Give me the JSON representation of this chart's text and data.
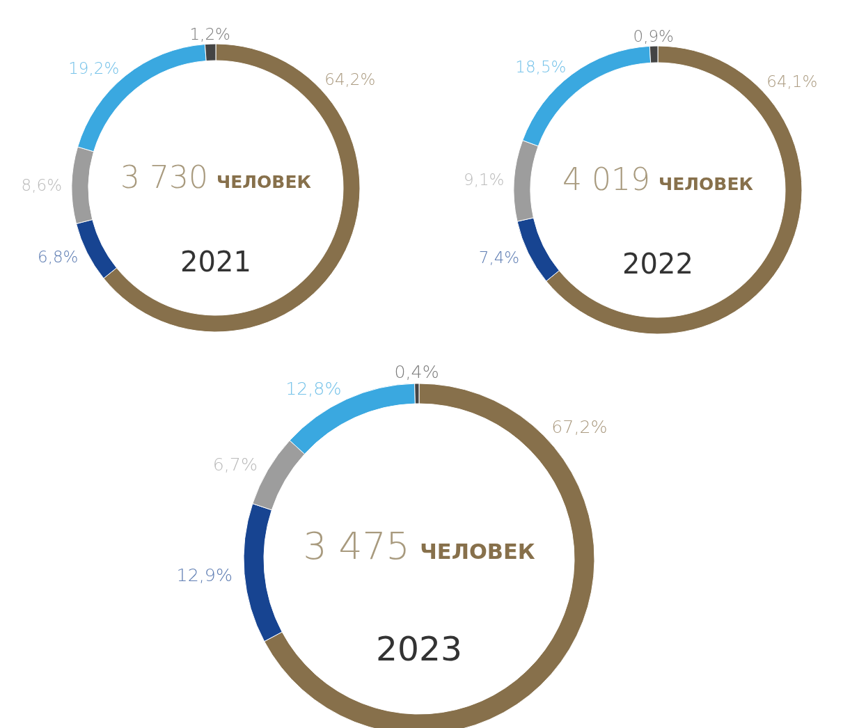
{
  "chart_data": [
    {
      "type": "donut",
      "title": "2021",
      "annotations": [
        "3 730",
        "ЧЕЛОВЕК"
      ],
      "categories": [
        null,
        null,
        null,
        null,
        null
      ],
      "values": [
        64.2,
        6.8,
        8.6,
        19.2,
        1.2
      ],
      "value_labels": [
        "64,2%",
        "6,8%",
        "8,6%",
        "19,2%",
        "1,2%"
      ],
      "colors": [
        "#87704b",
        "#174491",
        "#9d9d9d",
        "#3aa8e0",
        "#444444"
      ]
    },
    {
      "type": "donut",
      "title": "2022",
      "annotations": [
        "4 019",
        "ЧЕЛОВЕК"
      ],
      "categories": [
        null,
        null,
        null,
        null,
        null
      ],
      "values": [
        64.1,
        7.4,
        9.1,
        18.5,
        0.9
      ],
      "value_labels": [
        "64,1%",
        "7,4%",
        "9,1%",
        "18,5%",
        "0,9%"
      ],
      "colors": [
        "#87704b",
        "#174491",
        "#9d9d9d",
        "#3aa8e0",
        "#444444"
      ]
    },
    {
      "type": "donut",
      "title": "2023",
      "annotations": [
        "3 475",
        "ЧЕЛОВЕК"
      ],
      "categories": [
        null,
        null,
        null,
        null,
        null
      ],
      "values": [
        67.2,
        12.9,
        6.7,
        12.8,
        0.4
      ],
      "value_labels": [
        "67,2%",
        "12,9%",
        "6,7%",
        "12,8%",
        "0,4%"
      ],
      "colors": [
        "#87704b",
        "#174491",
        "#9d9d9d",
        "#3aa8e0",
        "#444444"
      ]
    }
  ]
}
